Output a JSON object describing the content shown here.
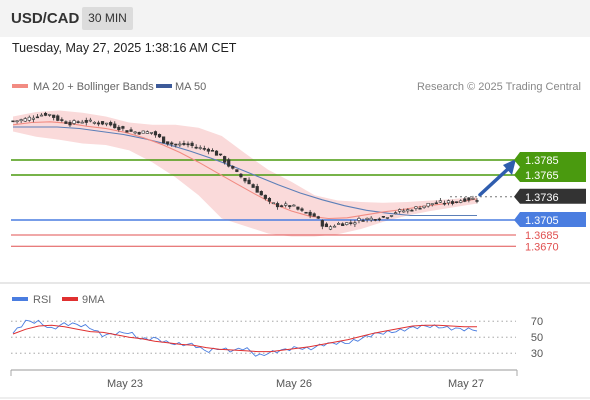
{
  "header": {
    "symbol": "USD/CAD",
    "interval": "30 MIN",
    "timestamp": "Tuesday, May 27, 2025 1:38:16 AM CET"
  },
  "legend": {
    "ma20_label": "MA 20 + Bollinger Bands",
    "ma50_label": "MA 50",
    "copyright": "Research © 2025 Trading Central",
    "rsi_label": "RSI",
    "rsi_ma_label": "9MA"
  },
  "colors": {
    "bollinger": "#fadada",
    "ma20": "#f28b82",
    "ma50": "#5c7fb8",
    "resistance": "#4a9a0f",
    "current": "#333333",
    "pivot": "#4a7de0",
    "support": "#e05050",
    "arrow": "#2f5dae",
    "candle": "#333333",
    "rsi": "#4a7de0",
    "rsi_ma": "#e03030"
  },
  "chart_data": {
    "type": "candlestick",
    "x_ticks": [
      "May 23",
      "May 26",
      "May 27"
    ],
    "ylim": [
      1.3645,
      1.3865
    ],
    "levels": [
      {
        "value": 1.3785,
        "label": "1.3785",
        "kind": "resistance"
      },
      {
        "value": 1.3765,
        "label": "1.3765",
        "kind": "resistance"
      },
      {
        "value": 1.3736,
        "label": "1.3736",
        "kind": "current"
      },
      {
        "value": 1.3705,
        "label": "1.3705",
        "kind": "pivot"
      },
      {
        "value": 1.3685,
        "label": "1.3685",
        "kind": "support"
      },
      {
        "value": 1.367,
        "label": "1.3670",
        "kind": "support"
      }
    ],
    "close_path": [
      1.3837,
      1.3839,
      1.3844,
      1.3847,
      1.3838,
      1.3834,
      1.3837,
      1.3835,
      1.3834,
      1.3829,
      1.3823,
      1.3822,
      1.3822,
      1.381,
      1.3805,
      1.3806,
      1.3801,
      1.3799,
      1.3788,
      1.3771,
      1.3758,
      1.3745,
      1.3728,
      1.3724,
      1.3724,
      1.3715,
      1.371,
      1.3694,
      1.37,
      1.3701,
      1.3706,
      1.3707,
      1.3709,
      1.3716,
      1.3718,
      1.3722,
      1.3727,
      1.3728,
      1.3729,
      1.3733,
      1.3733
    ],
    "ma20": [
      1.3832,
      1.3835,
      1.3836,
      1.3834,
      1.383,
      1.3827,
      1.3822,
      1.3815,
      1.3806,
      1.3795,
      1.3782,
      1.3768,
      1.3754,
      1.374,
      1.3727,
      1.3717,
      1.371,
      1.3707,
      1.3708,
      1.3712,
      1.3716,
      1.3719,
      1.3723,
      1.3726,
      1.3729,
      1.3733
    ],
    "ma50": [
      1.3829,
      1.3829,
      1.3829,
      1.3827,
      1.3823,
      1.3819,
      1.3813,
      1.3806,
      1.3797,
      1.3787,
      1.3776,
      1.3764,
      1.3752,
      1.3741,
      1.3732,
      1.3724,
      1.3718,
      1.3714,
      1.3711,
      1.3711,
      1.3711,
      1.3711
    ],
    "bb_upper": [
      1.3843,
      1.3849,
      1.3851,
      1.3848,
      1.3843,
      1.3835,
      1.3832,
      1.3832,
      1.3828,
      1.3817,
      1.3794,
      1.3772,
      1.3756,
      1.3738,
      1.3731,
      1.3729,
      1.3728,
      1.3729,
      1.3731,
      1.3733,
      1.3736
    ],
    "bb_lower": [
      1.3823,
      1.3816,
      1.3812,
      1.3807,
      1.3805,
      1.3798,
      1.3782,
      1.3762,
      1.3738,
      1.3707,
      1.3697,
      1.3687,
      1.3683,
      1.3683,
      1.3686,
      1.3693,
      1.3703,
      1.3711,
      1.3717,
      1.3722,
      1.3727
    ],
    "rsi": {
      "levels": [
        70,
        50,
        30
      ],
      "ylim": [
        14,
        84
      ],
      "rsi": [
        55,
        70,
        69,
        60,
        67,
        66,
        62,
        52,
        55,
        56,
        47,
        49,
        43,
        41,
        41,
        32,
        36,
        33,
        37,
        26,
        31,
        34,
        37,
        35,
        41,
        43,
        43,
        48,
        54,
        56,
        58,
        62,
        64,
        63,
        61,
        60,
        59
      ],
      "ma": [
        54,
        60,
        64,
        65,
        63,
        60,
        57,
        56,
        53,
        50,
        48,
        45,
        43,
        41,
        40,
        37,
        35,
        34,
        33,
        32,
        32,
        34,
        36,
        38,
        41,
        44,
        47,
        51,
        55,
        58,
        61,
        64,
        65,
        65,
        64,
        63,
        63
      ]
    }
  }
}
